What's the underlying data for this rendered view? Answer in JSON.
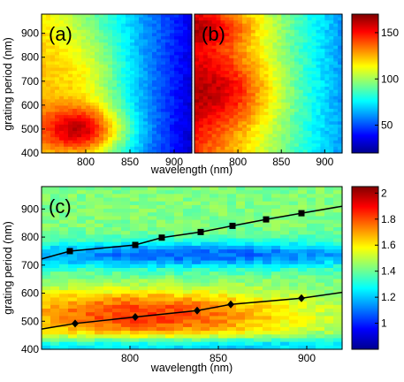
{
  "chart_data": [
    {
      "type": "heatmap",
      "panel_label": "(a)",
      "xlabel": "",
      "ylabel": "grating period (nm)",
      "xlim": [
        750,
        920
      ],
      "ylim": [
        400,
        980
      ],
      "x_ticks": [
        800,
        850,
        900
      ],
      "y_ticks": [
        400,
        500,
        600,
        700,
        800,
        900
      ],
      "clim": [
        20,
        170
      ],
      "hotspots": [
        {
          "center_wavelength": 790,
          "center_period": 520,
          "value": 160
        },
        {
          "center_wavelength": 800,
          "center_period": 470,
          "value": 155
        }
      ],
      "description_values": {
        "low_region_value": 30,
        "mid_region_value": 90
      }
    },
    {
      "type": "heatmap",
      "panel_label": "(b)",
      "xlabel": "",
      "ylabel": "",
      "xlim": [
        750,
        920
      ],
      "ylim": [
        400,
        980
      ],
      "x_ticks": [
        800,
        850,
        900
      ],
      "clim": [
        20,
        170
      ],
      "hotspots": [
        {
          "center_wavelength": 785,
          "center_period": 700,
          "value": 165
        },
        {
          "center_wavelength": 790,
          "center_period": 600,
          "value": 160
        }
      ]
    },
    {
      "type": "colorbar",
      "clim": [
        20,
        170
      ],
      "ticks": [
        50,
        100,
        150
      ]
    },
    {
      "type": "heatmap",
      "panel_label": "(c)",
      "xlabel": "wavelength (nm)",
      "ylabel": "grating period (nm)",
      "xlim": [
        750,
        920
      ],
      "ylim": [
        400,
        980
      ],
      "x_ticks": [
        800,
        850,
        900
      ],
      "y_ticks": [
        400,
        500,
        600,
        700,
        800,
        900
      ],
      "clim": [
        0.8,
        2.05
      ],
      "series": [
        {
          "marker": "square",
          "x": [
            750,
            766,
            803,
            818,
            840,
            858,
            877,
            897,
            920
          ],
          "y": [
            722,
            750,
            772,
            798,
            818,
            840,
            863,
            885,
            910
          ]
        },
        {
          "marker": "diamond",
          "x": [
            750,
            769,
            803,
            838,
            857,
            897,
            920
          ],
          "y": [
            472,
            492,
            515,
            538,
            560,
            582,
            603
          ]
        }
      ]
    },
    {
      "type": "colorbar",
      "clim": [
        0.8,
        2.05
      ],
      "ticks": [
        1,
        1.2,
        1.4,
        1.6,
        1.8,
        2
      ]
    }
  ],
  "labels": {
    "xlabel_top": "wavelength (nm)",
    "ylabel_top": "grating period (nm)",
    "xlabel_bottom": "wavelength (nm)",
    "ylabel_bottom": "grating period (nm)"
  },
  "tick_text": {
    "a_y": [
      "400",
      "500",
      "600",
      "700",
      "800",
      "900"
    ],
    "a_x": [
      "800",
      "850",
      "900"
    ],
    "b_x": [
      "800",
      "850",
      "900"
    ],
    "cb1": [
      "50",
      "100",
      "150"
    ],
    "c_y": [
      "400",
      "500",
      "600",
      "700",
      "800",
      "900"
    ],
    "c_x": [
      "800",
      "850",
      "900"
    ],
    "cb2": [
      "1",
      "1.2",
      "1.4",
      "1.6",
      "1.8",
      "2"
    ]
  }
}
